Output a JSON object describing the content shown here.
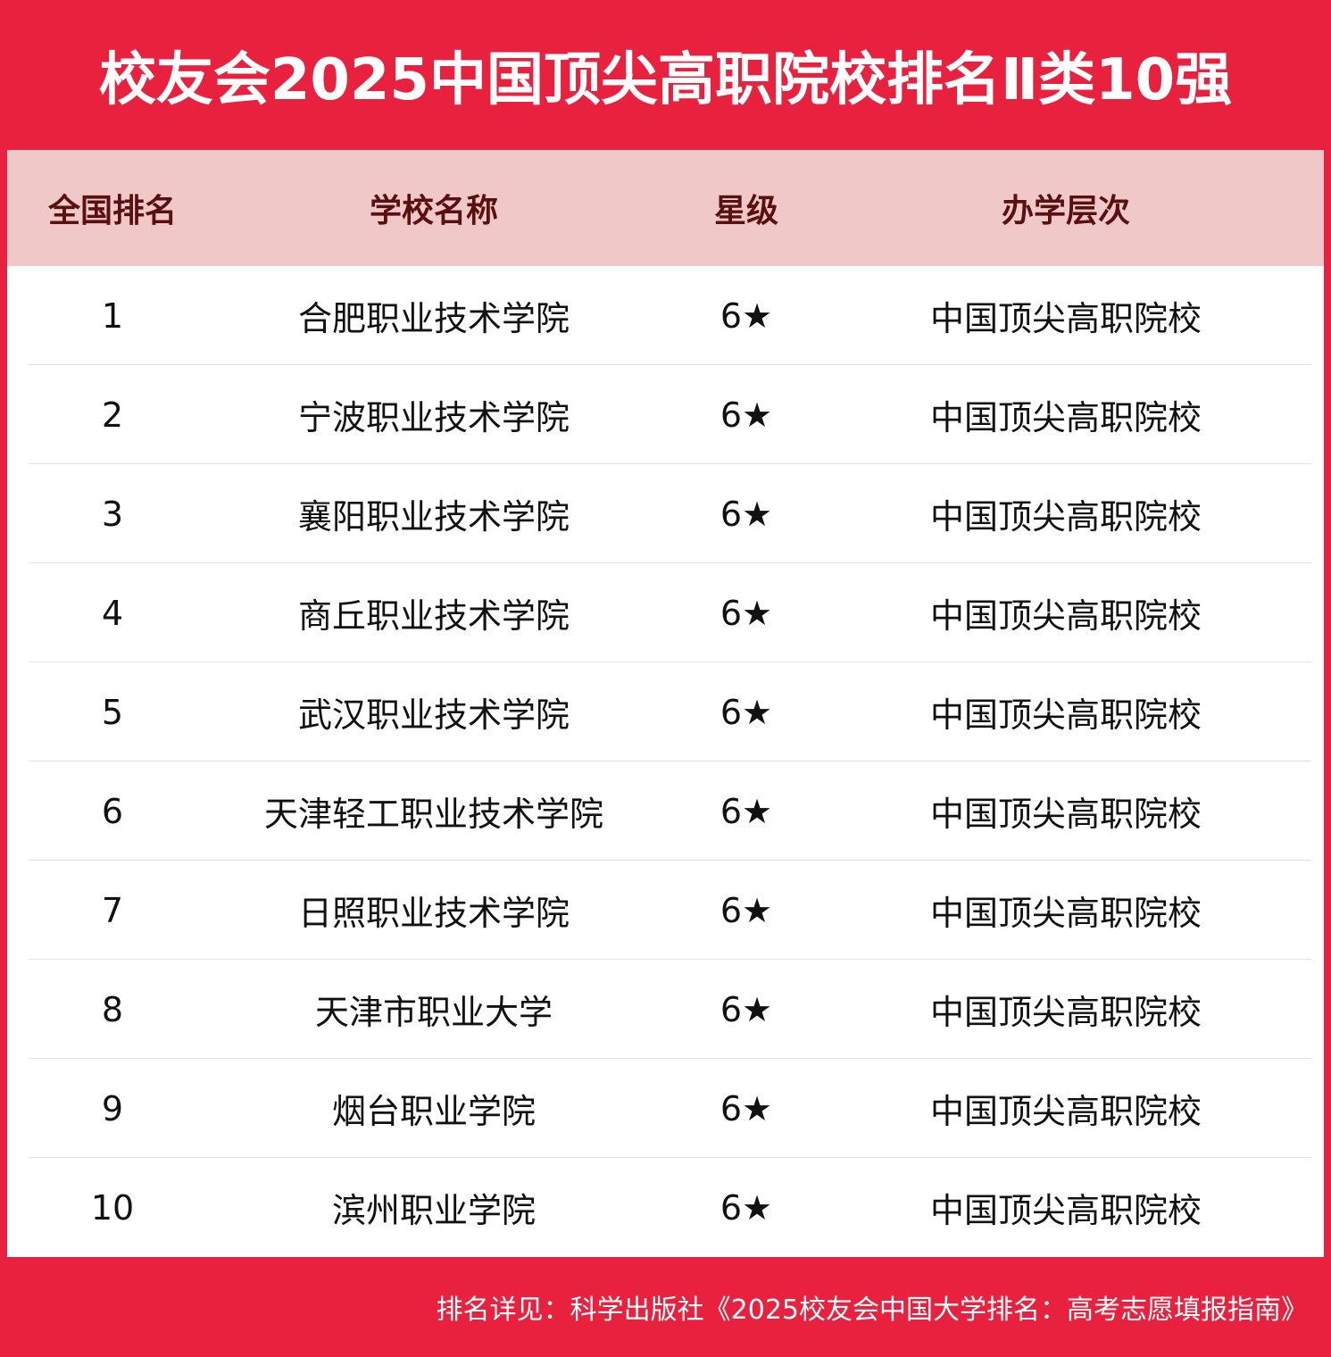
{
  "title": "校友会2025中国顶尖高职院校排名Ⅱ类10强",
  "table": {
    "headers": [
      "全国排名",
      "学校名称",
      "星级",
      "办学层次"
    ],
    "rows": [
      {
        "rank": "1",
        "school": "合肥职业技术学院",
        "stars": "6★",
        "level": "中国顶尖高职院校"
      },
      {
        "rank": "2",
        "school": "宁波职业技术学院",
        "stars": "6★",
        "level": "中国顶尖高职院校"
      },
      {
        "rank": "3",
        "school": "襄阳职业技术学院",
        "stars": "6★",
        "level": "中国顶尖高职院校"
      },
      {
        "rank": "4",
        "school": "商丘职业技术学院",
        "stars": "6★",
        "level": "中国顶尖高职院校"
      },
      {
        "rank": "5",
        "school": "武汉职业技术学院",
        "stars": "6★",
        "level": "中国顶尖高职院校"
      },
      {
        "rank": "6",
        "school": "天津轻工职业技术学院",
        "stars": "6★",
        "level": "中国顶尖高职院校"
      },
      {
        "rank": "7",
        "school": "日照职业技术学院",
        "stars": "6★",
        "level": "中国顶尖高职院校"
      },
      {
        "rank": "8",
        "school": "天津市职业大学",
        "stars": "6★",
        "level": "中国顶尖高职院校"
      },
      {
        "rank": "9",
        "school": "烟台职业学院",
        "stars": "6★",
        "level": "中国顶尖高职院校"
      },
      {
        "rank": "10",
        "school": "滨州职业学院",
        "stars": "6★",
        "level": "中国顶尖高职院校"
      }
    ]
  },
  "footer": "排名详见：科学出版社《2025校友会中国大学排名：高考志愿填报指南》",
  "colors": {
    "brand_red": "#e8213f",
    "header_bg": "#f0c8c8",
    "header_text": "#5a1010"
  }
}
